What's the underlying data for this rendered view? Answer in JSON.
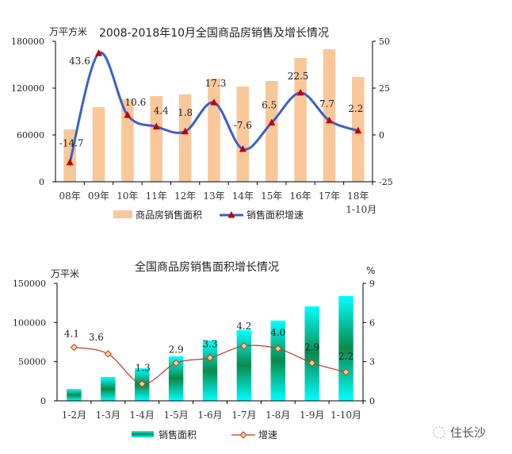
{
  "chart_data": [
    {
      "type": "bar+line",
      "title": "2008-2018年10月全国商品房销售及增长情况",
      "ylabel": "万平方米",
      "ylim": [
        0,
        180000
      ],
      "y2lim": [
        -25,
        50
      ],
      "yticks": [
        "0",
        "60000",
        "120000",
        "180000"
      ],
      "y2ticks": [
        "-25",
        "0",
        "25",
        "50"
      ],
      "categories": [
        "08年",
        "09年",
        "10年",
        "11年",
        "12年",
        "13年",
        "14年",
        "15年",
        "16年",
        "17年",
        "18年"
      ],
      "category_sub": [
        "",
        "",
        "",
        "",
        "",
        "",
        "",
        "",
        "",
        "",
        "1-10月"
      ],
      "series": [
        {
          "name": "商品房销售面积",
          "type": "bar",
          "color": "#f9c89a",
          "values": [
            67100,
            95600,
            105700,
            109800,
            111900,
            132200,
            122000,
            129200,
            158600,
            169800,
            134200
          ]
        },
        {
          "name": "销售面积增速",
          "type": "line",
          "axis": "right",
          "color": "#3a5fcd",
          "marker_color": "#c00000",
          "values": [
            -14.7,
            43.6,
            10.6,
            4.4,
            1.8,
            17.3,
            -7.6,
            6.5,
            22.5,
            7.7,
            2.2
          ],
          "labels": [
            "-14.7",
            "43.6",
            "10.6",
            "4.4",
            "1.8",
            "17.3",
            "-7.6",
            "6.5",
            "22.5",
            "7.7",
            "2.2"
          ]
        }
      ],
      "legend": "bottom"
    },
    {
      "type": "bar+line",
      "title": "全国商品房销售面积增长情况",
      "ylabel": "万平米",
      "y2label": "%",
      "ylim": [
        0,
        150000
      ],
      "y2lim": [
        0,
        9
      ],
      "yticks": [
        "0",
        "50000",
        "100000",
        "150000"
      ],
      "y2ticks": [
        "0",
        "3",
        "6",
        "9"
      ],
      "categories": [
        "1-2月",
        "1-3月",
        "1-4月",
        "1-5月",
        "1-6月",
        "1-7月",
        "1-8月",
        "1-9月",
        "1-10月"
      ],
      "series": [
        {
          "name": "销售面积",
          "type": "bar",
          "color": "#00e5e5",
          "values": [
            15200,
            30400,
            41600,
            56800,
            77000,
            90200,
            102400,
            120600,
            133800
          ]
        },
        {
          "name": "增速",
          "type": "line",
          "axis": "right",
          "color": "#c0392b",
          "marker_color": "#f5d08a",
          "values": [
            4.1,
            3.6,
            1.3,
            2.9,
            3.3,
            4.2,
            4.0,
            2.9,
            2.2
          ],
          "labels": [
            "4.1",
            "3.6",
            "1.3",
            "2.9",
            "3.3",
            "4.2",
            "4.0",
            "2.9",
            "2.2"
          ]
        }
      ],
      "legend": "bottom"
    }
  ],
  "watermark": "住长沙"
}
